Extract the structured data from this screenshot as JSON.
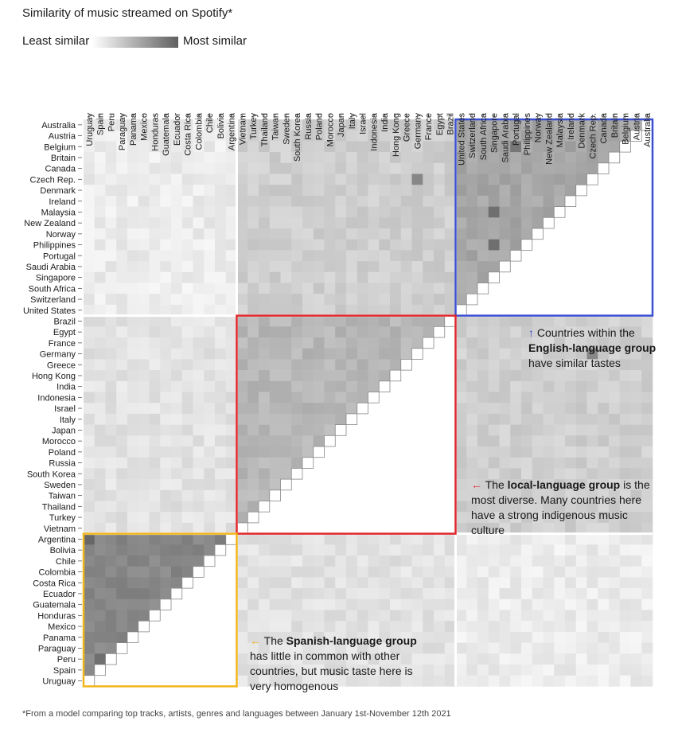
{
  "title": "Similarity of music streamed on Spotify*",
  "legend": {
    "min_label": "Least similar",
    "max_label": "Most similar"
  },
  "footnote": "*From a model comparing top tracks, artists, genres and languages between January 1st-November 12th 2021",
  "annotations": {
    "english": {
      "arrow": "↑",
      "pre": "Countries within the",
      "bold": "English-language group",
      "post": "have similar tastes",
      "color": "#3b4fd1"
    },
    "local": {
      "arrow": "←",
      "pre": "The",
      "bold": "local-language group",
      "mid": "is",
      "post": "the most diverse. Many countries here have a strong indigenous music culture",
      "color": "#e0262b"
    },
    "spanish": {
      "arrow": "←",
      "pre": "The",
      "bold": "Spanish-language group",
      "post": "has little in common with other countries, but music taste here is very homogenous",
      "color": "#f2b51a"
    }
  },
  "chart_data": {
    "type": "heatmap",
    "title": "Similarity of music streamed on Spotify*",
    "scale": {
      "min_label": "Least similar",
      "max_label": "Most similar",
      "min_color": "#ffffff",
      "max_color": "#5f5f5f"
    },
    "columns": [
      "Uruguay",
      "Spain",
      "Peru",
      "Paraguay",
      "Panama",
      "Mexico",
      "Honduras",
      "Guatemala",
      "Ecuador",
      "Costa Rica",
      "Colombia",
      "Chile",
      "Bolivia",
      "Argentina",
      "Vietnam",
      "Turkey",
      "Thailand",
      "Taiwan",
      "Sweden",
      "South Korea",
      "Russia",
      "Poland",
      "Morocco",
      "Japan",
      "Italy",
      "Israel",
      "Indonesia",
      "India",
      "Hong Kong",
      "Greece",
      "Germany",
      "France",
      "Egypt",
      "Brazil",
      "United States",
      "Switzerland",
      "South Africa",
      "Singapore",
      "Saudi Arabia",
      "Portugal",
      "Philippines",
      "Norway",
      "New Zealand",
      "Malaysia",
      "Ireland",
      "Denmark",
      "Czech Rep.",
      "Canada",
      "Britain",
      "Belgium",
      "Austria",
      "Australia"
    ],
    "rows": [
      "Australia",
      "Austria",
      "Belgium",
      "Britain",
      "Canada",
      "Czech Rep.",
      "Denmark",
      "Ireland",
      "Malaysia",
      "New Zealand",
      "Norway",
      "Philippines",
      "Portugal",
      "Saudi Arabia",
      "Singapore",
      "South Africa",
      "Switzerland",
      "United States",
      "Brazil",
      "Egypt",
      "France",
      "Germany",
      "Greece",
      "Hong Kong",
      "India",
      "Indonesia",
      "Israel",
      "Italy",
      "Japan",
      "Morocco",
      "Poland",
      "Russia",
      "South Korea",
      "Sweden",
      "Taiwan",
      "Thailand",
      "Turkey",
      "Vietnam",
      "Argentina",
      "Bolivia",
      "Chile",
      "Colombia",
      "Costa Rica",
      "Ecuador",
      "Guatemala",
      "Honduras",
      "Mexico",
      "Panama",
      "Paraguay",
      "Peru",
      "Spain",
      "Uruguay"
    ],
    "groups": [
      {
        "name": "English-language group",
        "members": [
          "Australia",
          "Austria",
          "Belgium",
          "Britain",
          "Canada",
          "Czech Rep.",
          "Denmark",
          "Ireland",
          "Malaysia",
          "New Zealand",
          "Norway",
          "Philippines",
          "Portugal",
          "Saudi Arabia",
          "Singapore",
          "South Africa",
          "Switzerland",
          "United States"
        ],
        "box_color": "#3b4fd1"
      },
      {
        "name": "local-language group",
        "members": [
          "Brazil",
          "Egypt",
          "France",
          "Germany",
          "Greece",
          "Hong Kong",
          "India",
          "Indonesia",
          "Israel",
          "Italy",
          "Japan",
          "Morocco",
          "Poland",
          "Russia",
          "South Korea",
          "Sweden",
          "Taiwan",
          "Thailand",
          "Turkey",
          "Vietnam"
        ],
        "box_color": "#e0262b"
      },
      {
        "name": "Spanish-language group",
        "members": [
          "Argentina",
          "Bolivia",
          "Chile",
          "Colombia",
          "Costa Rica",
          "Ecuador",
          "Guatemala",
          "Honduras",
          "Mexico",
          "Panama",
          "Paraguay",
          "Peru",
          "Spain",
          "Uruguay"
        ],
        "box_color": "#f2b51a"
      }
    ],
    "typical_similarity": {
      "within_english": 0.55,
      "within_local": 0.45,
      "within_spanish": 0.75,
      "english_vs_local": 0.3,
      "english_vs_spanish": 0.12,
      "local_vs_spanish": 0.18
    },
    "notable_high": [
      {
        "row": "Argentina",
        "col": "Uruguay",
        "value": 0.95
      },
      {
        "row": "Peru",
        "col": "Spain",
        "value": 0.9
      },
      {
        "row": "Malaysia",
        "col": "Singapore",
        "value": 0.9
      },
      {
        "row": "Philippines",
        "col": "Singapore",
        "value": 0.9
      },
      {
        "row": "Belgium",
        "col": "Portugal",
        "value": 0.85
      },
      {
        "row": "Czech Rep.",
        "col": "Germany",
        "value": 0.75
      }
    ]
  }
}
